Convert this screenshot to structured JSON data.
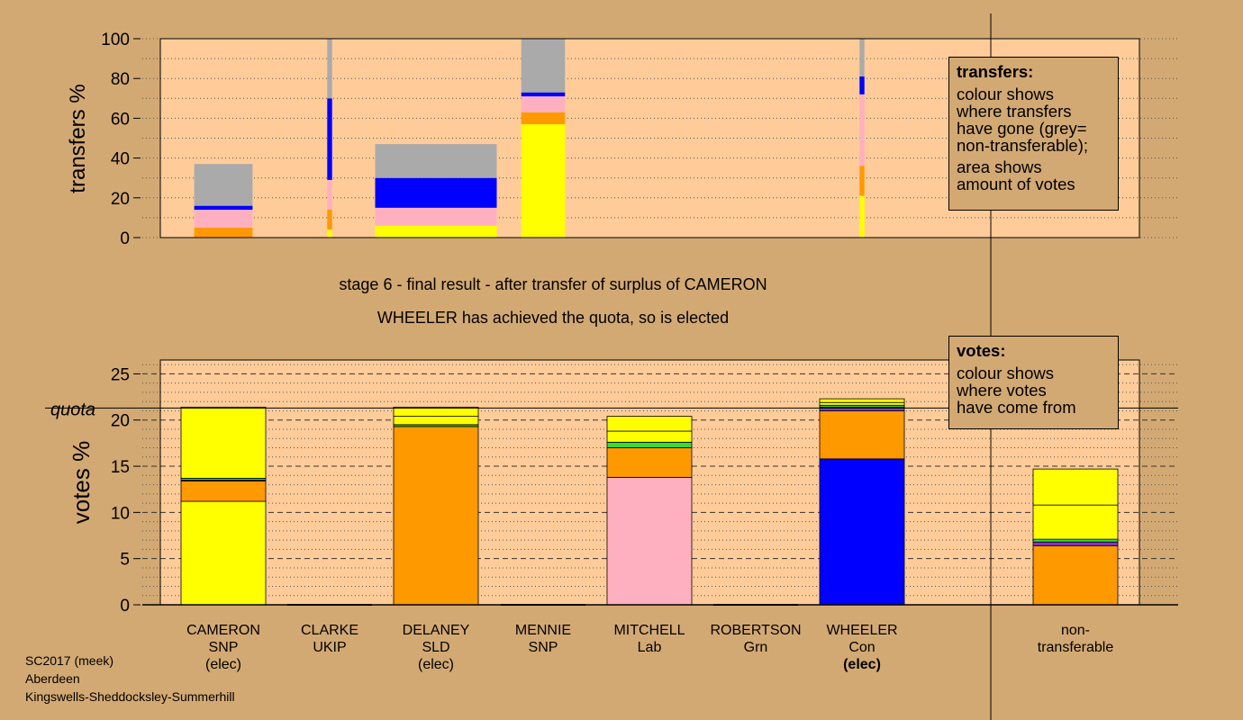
{
  "titles": {
    "line1": "stage 6 - final result - after transfer of surplus of CAMERON",
    "line2": "WHEELER has achieved the quota, so is elected"
  },
  "legends": {
    "transfers": {
      "heading": "transfers:",
      "body": "colour shows\nwhere transfers\nhave gone (grey=\nnon-transferable);",
      "body2": "area shows\namount of votes"
    },
    "votes": {
      "heading": "votes:",
      "body": "colour shows\nwhere votes\nhave come from"
    }
  },
  "footer": {
    "line1": "SC2017 (meek)",
    "line2": "Aberdeen",
    "line3": "Kingswells-Sheddocksley-Summerhill"
  },
  "colors": {
    "background": "#d3a973",
    "plot_area": "#ffcc99",
    "SNP": "#ffff00",
    "SLD": "#ff9900",
    "Lab": "#ffb0c0",
    "Con": "#0000ff",
    "Grn": "#33dd33",
    "UKIP": "#8833cc",
    "non_transferable": "#aaaaaa"
  },
  "chart_data": [
    {
      "type": "bar",
      "subtype": "stacked-variable-width",
      "ylabel": "transfers %",
      "ylim": [
        0,
        100
      ],
      "yticks": [
        0,
        20,
        40,
        60,
        80,
        100
      ],
      "segment_order": [
        "SNP",
        "SLD",
        "Lab",
        "Con",
        "non_transferable"
      ],
      "bars": [
        {
          "candidate": "CAMERON",
          "width_share": 0.6,
          "segments": {
            "SNP": 0,
            "SLD": 5,
            "Lab": 9,
            "Con": 2,
            "non_transferable": 21
          }
        },
        {
          "candidate": "CLARKE",
          "width_share": 0.05,
          "segments": {
            "SNP": 4,
            "SLD": 10,
            "Lab": 15,
            "Con": 41,
            "non_transferable": 30
          }
        },
        {
          "candidate": "DELANEY",
          "width_share": 1.25,
          "segments": {
            "SNP": 6,
            "SLD": 0,
            "Lab": 9,
            "Con": 15,
            "non_transferable": 17
          }
        },
        {
          "candidate": "MENNIE",
          "width_share": 0.45,
          "segments": {
            "SNP": 57,
            "SLD": 6,
            "Lab": 8,
            "Con": 2,
            "non_transferable": 27
          }
        },
        {
          "candidate": "WHEELER",
          "width_share": 0.05,
          "segments": {
            "SNP": 21,
            "SLD": 15,
            "Lab": 36,
            "Con": 9,
            "non_transferable": 19
          }
        }
      ]
    },
    {
      "type": "bar",
      "subtype": "stacked",
      "ylabel": "votes %",
      "ylim": [
        0,
        26.5
      ],
      "yticks": [
        0,
        5,
        10,
        15,
        20,
        25
      ],
      "quota": 21.3,
      "quota_label": "quota",
      "segment_order": [
        "first",
        "2",
        "3",
        "4",
        "5",
        "6"
      ],
      "categories": [
        {
          "name": "CAMERON",
          "party": "SNP",
          "status": "(elec)",
          "status_bold": false
        },
        {
          "name": "CLARKE",
          "party": "UKIP",
          "status": "",
          "status_bold": false
        },
        {
          "name": "DELANEY",
          "party": "SLD",
          "status": "(elec)",
          "status_bold": false
        },
        {
          "name": "MENNIE",
          "party": "SNP",
          "status": "",
          "status_bold": false
        },
        {
          "name": "MITCHELL",
          "party": "Lab",
          "status": "",
          "status_bold": false
        },
        {
          "name": "ROBERTSON",
          "party": "Grn",
          "status": "",
          "status_bold": false
        },
        {
          "name": "WHEELER",
          "party": "Con",
          "status": "(elec)",
          "status_bold": true
        },
        {
          "name": "non-\ntransferable",
          "party": "",
          "status": "",
          "status_bold": false
        }
      ],
      "stacks": [
        [
          {
            "color": "SNP",
            "value": 11.2
          },
          {
            "color": "SLD",
            "value": 2.2
          },
          {
            "color": "Lab",
            "value": 0.1
          },
          {
            "color": "Grn",
            "value": 0.2
          },
          {
            "color": "SNP",
            "value": 7.7
          }
        ],
        [],
        [
          {
            "color": "SLD",
            "value": 19.3
          },
          {
            "color": "Grn",
            "value": 0.2
          },
          {
            "color": "SNP",
            "value": 0.9
          },
          {
            "color": "SNP",
            "value": 1.0
          }
        ],
        [],
        [
          {
            "color": "Lab",
            "value": 13.8
          },
          {
            "color": "SLD",
            "value": 3.2
          },
          {
            "color": "Grn",
            "value": 0.6
          },
          {
            "color": "SNP",
            "value": 1.2
          },
          {
            "color": "SNP",
            "value": 1.6
          }
        ],
        [],
        [
          {
            "color": "Con",
            "value": 15.8
          },
          {
            "color": "SLD",
            "value": 5.2
          },
          {
            "color": "UKIP",
            "value": 0.4
          },
          {
            "color": "Grn",
            "value": 0.2
          },
          {
            "color": "SNP",
            "value": 0.3
          },
          {
            "color": "SNP",
            "value": 0.4
          }
        ],
        [
          {
            "color": "SLD",
            "value": 6.4
          },
          {
            "color": "UKIP",
            "value": 0.4
          },
          {
            "color": "Grn",
            "value": 0.3
          },
          {
            "color": "SNP",
            "value": 3.7
          },
          {
            "color": "SNP",
            "value": 3.9
          }
        ]
      ]
    }
  ]
}
